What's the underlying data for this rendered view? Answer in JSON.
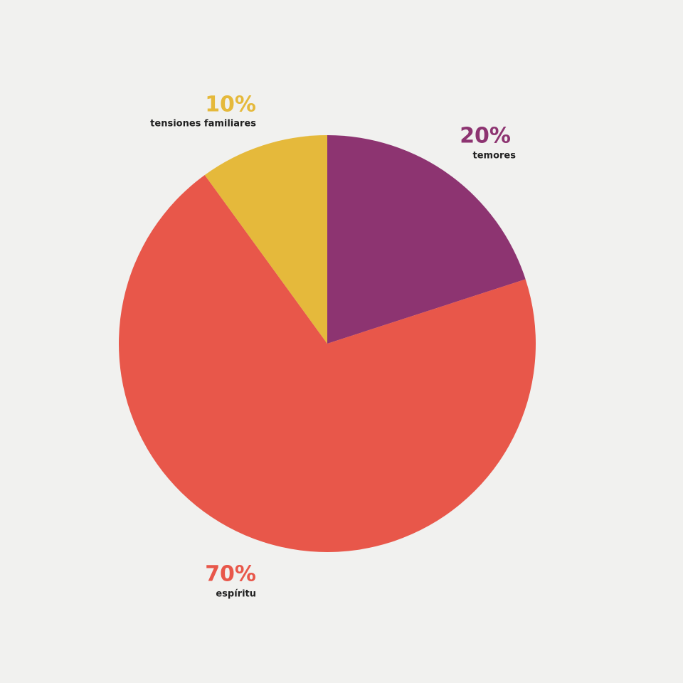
{
  "chart_data": {
    "type": "pie",
    "categories": [
      "temores",
      "espíritu",
      "tensiones familiares"
    ],
    "values": [
      20,
      70,
      10
    ],
    "value_labels": [
      "20%",
      "70%",
      "10%"
    ],
    "colors": [
      "#8d3471",
      "#e8574a",
      "#e5b93b"
    ]
  }
}
